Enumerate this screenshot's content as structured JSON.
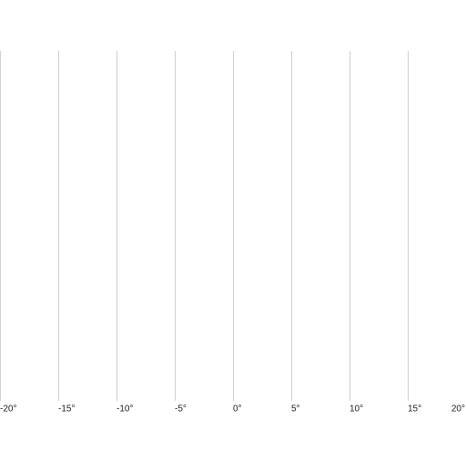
{
  "chart_data": {
    "type": "line",
    "title": "",
    "xlabel": "",
    "ylabel": "",
    "x_axis": {
      "min": -20,
      "max": 20,
      "ticks": [
        -20,
        -15,
        -10,
        -5,
        0,
        5,
        10,
        15,
        20
      ],
      "tick_labels": [
        "-20°",
        "-15°",
        "-10°",
        "-5°",
        "0°",
        "5°",
        "10°",
        "15°",
        "20°"
      ],
      "unit": "°"
    },
    "grid": {
      "vertical": true,
      "horizontal": false,
      "color": "#cfcfcf"
    },
    "series": []
  }
}
